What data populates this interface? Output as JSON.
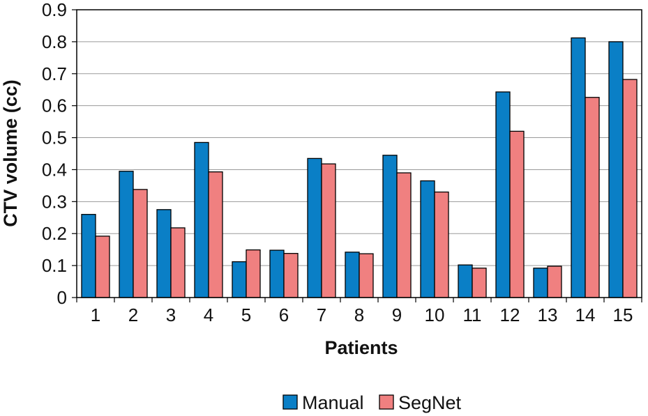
{
  "chart_data": {
    "type": "bar",
    "title": "",
    "xlabel": "Patients",
    "ylabel": "CTV volume (cc)",
    "categories": [
      "1",
      "2",
      "3",
      "4",
      "5",
      "6",
      "7",
      "8",
      "9",
      "10",
      "11",
      "12",
      "13",
      "14",
      "15"
    ],
    "ylim": [
      0,
      0.9
    ],
    "yticks": [
      "0",
      "0.1",
      "0.2",
      "0.3",
      "0.4",
      "0.5",
      "0.6",
      "0.7",
      "0.8",
      "0.9"
    ],
    "grid": true,
    "legend_position": "bottom",
    "series": [
      {
        "name": "Manual",
        "color": "#0a7fc6",
        "values": [
          0.26,
          0.395,
          0.275,
          0.485,
          0.112,
          0.148,
          0.435,
          0.142,
          0.445,
          0.365,
          0.102,
          0.643,
          0.092,
          0.812,
          0.8
        ]
      },
      {
        "name": "SegNet",
        "color": "#f08080",
        "values": [
          0.192,
          0.338,
          0.218,
          0.393,
          0.149,
          0.138,
          0.418,
          0.137,
          0.39,
          0.33,
          0.092,
          0.52,
          0.098,
          0.626,
          0.682
        ]
      }
    ]
  }
}
